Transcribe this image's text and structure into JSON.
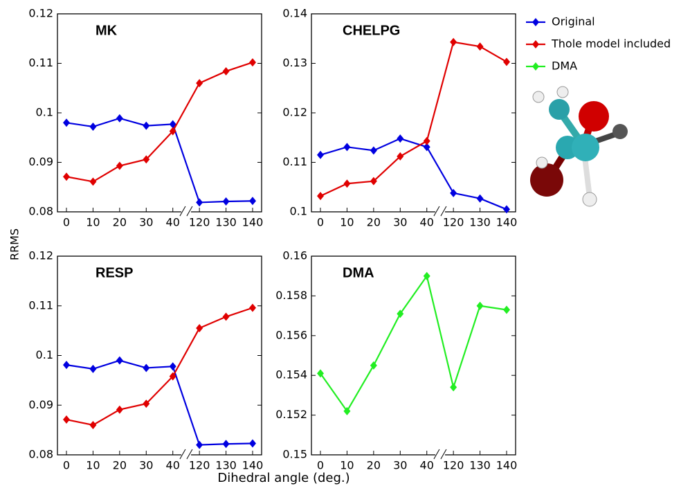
{
  "chart_data": [
    {
      "type": "line",
      "title": "MK",
      "categories": [
        "0",
        "10",
        "20",
        "30",
        "40",
        "120",
        "130",
        "140"
      ],
      "series": [
        {
          "name": "Original",
          "color": "#0000e0",
          "values": [
            0.098,
            0.0972,
            0.0989,
            0.0974,
            0.0977,
            0.0819,
            0.0821,
            0.0822
          ]
        },
        {
          "name": "Thole model included",
          "color": "#e00000",
          "values": [
            0.0871,
            0.0861,
            0.0893,
            0.0906,
            0.0963,
            0.106,
            0.1084,
            0.1102
          ]
        }
      ],
      "ylim": [
        0.08,
        0.12
      ],
      "yticks": [
        0.08,
        0.09,
        0.1,
        0.11,
        0.12
      ]
    },
    {
      "type": "line",
      "title": "CHELPG",
      "categories": [
        "0",
        "10",
        "20",
        "30",
        "40",
        "120",
        "130",
        "140"
      ],
      "series": [
        {
          "name": "Original",
          "color": "#0000e0",
          "values": [
            0.1115,
            0.1131,
            0.1124,
            0.1148,
            0.1131,
            0.1038,
            0.1027,
            0.1005
          ]
        },
        {
          "name": "Thole model included",
          "color": "#e00000",
          "values": [
            0.1032,
            0.1057,
            0.1062,
            0.1112,
            0.1143,
            0.1343,
            0.1334,
            0.1303
          ]
        }
      ],
      "ylim": [
        0.1,
        0.14
      ],
      "yticks": [
        0.1,
        0.11,
        0.12,
        0.13,
        0.14
      ]
    },
    {
      "type": "line",
      "title": "RESP",
      "categories": [
        "0",
        "10",
        "20",
        "30",
        "40",
        "120",
        "130",
        "140"
      ],
      "series": [
        {
          "name": "Original",
          "color": "#0000e0",
          "values": [
            0.0981,
            0.0973,
            0.099,
            0.0975,
            0.0978,
            0.082,
            0.0822,
            0.0823
          ]
        },
        {
          "name": "Thole model included",
          "color": "#e00000",
          "values": [
            0.0871,
            0.086,
            0.0891,
            0.0903,
            0.0958,
            0.1055,
            0.1078,
            0.1096
          ]
        }
      ],
      "ylim": [
        0.08,
        0.12
      ],
      "yticks": [
        0.08,
        0.09,
        0.1,
        0.11,
        0.12
      ]
    },
    {
      "type": "line",
      "title": "DMA",
      "categories": [
        "0",
        "10",
        "20",
        "30",
        "40",
        "120",
        "130",
        "140"
      ],
      "series": [
        {
          "name": "DMA",
          "color": "#22ee22",
          "values": [
            0.1541,
            0.1522,
            0.1545,
            0.1571,
            0.159,
            0.1534,
            0.1575,
            0.1573
          ]
        }
      ],
      "ylim": [
        0.15,
        0.16
      ],
      "yticks": [
        0.15,
        0.152,
        0.154,
        0.156,
        0.158,
        0.16
      ]
    }
  ],
  "ylabel": "RRMS",
  "xlabel": "Dihedral angle (deg.)"
}
